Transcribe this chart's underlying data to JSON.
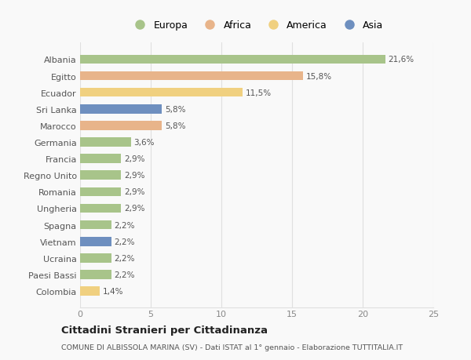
{
  "categories": [
    "Albania",
    "Egitto",
    "Ecuador",
    "Sri Lanka",
    "Marocco",
    "Germania",
    "Francia",
    "Regno Unito",
    "Romania",
    "Ungheria",
    "Spagna",
    "Vietnam",
    "Ucraina",
    "Paesi Bassi",
    "Colombia"
  ],
  "values": [
    21.6,
    15.8,
    11.5,
    5.8,
    5.8,
    3.6,
    2.9,
    2.9,
    2.9,
    2.9,
    2.2,
    2.2,
    2.2,
    2.2,
    1.4
  ],
  "labels": [
    "21,6%",
    "15,8%",
    "11,5%",
    "5,8%",
    "5,8%",
    "3,6%",
    "2,9%",
    "2,9%",
    "2,9%",
    "2,9%",
    "2,2%",
    "2,2%",
    "2,2%",
    "2,2%",
    "1,4%"
  ],
  "colors": [
    "#a8c48a",
    "#e8b48a",
    "#f0d080",
    "#6e8fbf",
    "#e8b48a",
    "#a8c48a",
    "#a8c48a",
    "#a8c48a",
    "#a8c48a",
    "#a8c48a",
    "#a8c48a",
    "#6e8fbf",
    "#a8c48a",
    "#a8c48a",
    "#f0d080"
  ],
  "legend_labels": [
    "Europa",
    "Africa",
    "America",
    "Asia"
  ],
  "legend_colors": [
    "#a8c48a",
    "#e8b48a",
    "#f0d080",
    "#6e8fbf"
  ],
  "title": "Cittadini Stranieri per Cittadinanza",
  "subtitle": "COMUNE DI ALBISSOLA MARINA (SV) - Dati ISTAT al 1° gennaio - Elaborazione TUTTITALIA.IT",
  "xlim": [
    0,
    25
  ],
  "xticks": [
    0,
    5,
    10,
    15,
    20,
    25
  ],
  "background_color": "#f9f9f9",
  "grid_color": "#e0e0e0",
  "bar_height": 0.55
}
